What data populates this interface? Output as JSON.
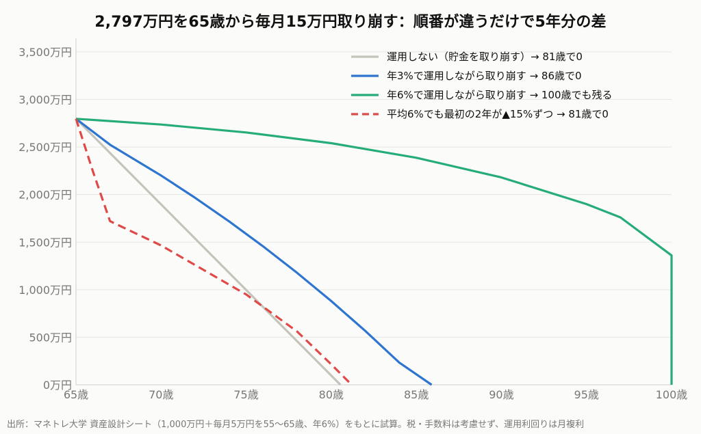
{
  "title": "2,797万円を65歳から毎月15万円取り崩す：順番が違うだけで5年分の差",
  "footnote": "出所：マネトレ大学 資産設計シート（1,000万円＋毎月5万円を55〜65歳、年6%）をもとに試算。税・手数料は考慮せず、運用利回りは月複利",
  "chart_data": {
    "type": "line",
    "title": "2,797万円を65歳から毎月15万円取り崩す：順番が違うだけで5年分の差",
    "xlabel": "",
    "ylabel": "",
    "xlim": [
      65,
      100
    ],
    "ylim": [
      0,
      3600
    ],
    "x_ticks": [
      65,
      70,
      75,
      80,
      85,
      90,
      95,
      100
    ],
    "x_tick_labels": [
      "65歳",
      "70歳",
      "75歳",
      "80歳",
      "85歳",
      "90歳",
      "95歳",
      "100歳"
    ],
    "y_ticks": [
      0,
      500,
      1000,
      1500,
      2000,
      2500,
      3000,
      3500
    ],
    "y_tick_labels": [
      "0万円",
      "500万円",
      "1,000万円",
      "1,500万円",
      "2,000万円",
      "2,500万円",
      "3,000万円",
      "3,500万円"
    ],
    "grid": "horizontal",
    "legend_position": "top-right",
    "series": [
      {
        "name": "運用しない（貯金を取り崩す）→ 81歳で0",
        "color": "#c5c4bb",
        "dash": "solid",
        "points": [
          [
            65,
            2797
          ],
          [
            70,
            1897
          ],
          [
            75,
            997
          ],
          [
            80,
            97
          ],
          [
            80.54,
            0
          ]
        ]
      },
      {
        "name": "年3%で運用しながら取り崩す → 86歳で0",
        "color": "#2e75cf",
        "dash": "solid",
        "points": [
          [
            65,
            2797
          ],
          [
            67,
            2524
          ],
          [
            70,
            2200
          ],
          [
            72,
            1966
          ],
          [
            74,
            1718
          ],
          [
            76,
            1455
          ],
          [
            78,
            1176
          ],
          [
            80,
            880
          ],
          [
            82,
            566
          ],
          [
            84,
            233
          ],
          [
            85.9,
            0
          ]
        ]
      },
      {
        "name": "年6%で運用しながら取り崩す → 100歳でも残る",
        "color": "#25ac78",
        "dash": "solid",
        "points": [
          [
            65,
            2797
          ],
          [
            70,
            2736
          ],
          [
            75,
            2653
          ],
          [
            80,
            2540
          ],
          [
            85,
            2387
          ],
          [
            90,
            2180
          ],
          [
            95,
            1900
          ],
          [
            97,
            1760
          ],
          [
            100,
            1360
          ],
          [
            100,
            0
          ]
        ]
      },
      {
        "name": "平均6%でも最初の2年が▲15%ずつ → 81歳で0",
        "color": "#dd4a48",
        "dash": "dashed",
        "points": [
          [
            65,
            2797
          ],
          [
            66,
            2240
          ],
          [
            67,
            1720
          ],
          [
            70,
            1465
          ],
          [
            75,
            950
          ],
          [
            78,
            560
          ],
          [
            80,
            215
          ],
          [
            81.2,
            0
          ]
        ]
      }
    ]
  }
}
